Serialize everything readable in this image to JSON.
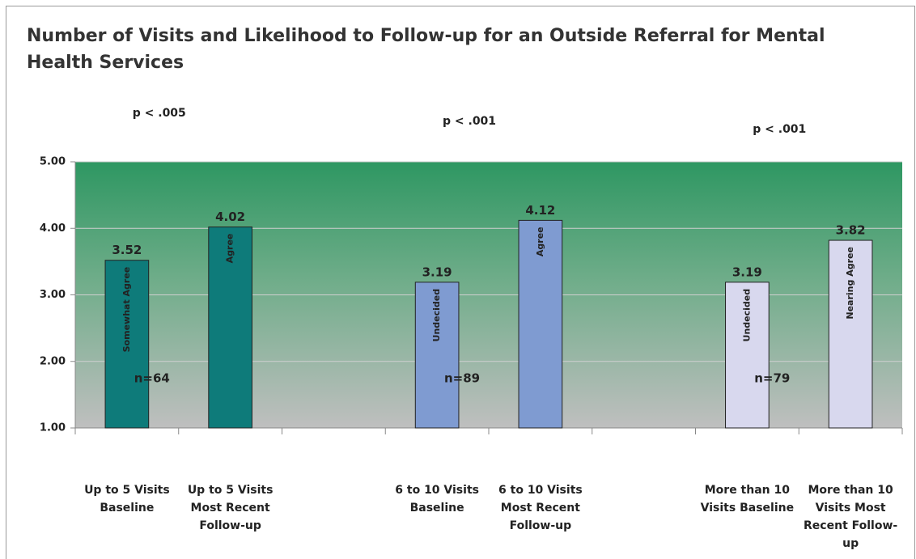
{
  "chart_data": {
    "type": "bar",
    "title": "Number of Visits and Likelihood to Follow-up for an Outside Referral for Mental Health Services",
    "categories": [
      "Up to 5 Visits Baseline",
      "Up to 5 Visits Most Recent Follow-up",
      null,
      "6 to 10 Visits Baseline",
      "6 to 10 Visits Most Recent Follow-up",
      null,
      "More than 10 Visits Baseline",
      "More than 10 Visits Most Recent Follow-up"
    ],
    "values": [
      3.52,
      4.02,
      null,
      3.19,
      4.12,
      null,
      3.19,
      3.82
    ],
    "colors": [
      "#0e7b7a",
      "#0e7b7a",
      null,
      "#7f9bd1",
      "#7f9bd1",
      null,
      "#d8d8ee",
      "#d8d8ee"
    ],
    "bar_labels": [
      "Somewhat Agree",
      "Agree",
      null,
      "Undecided",
      "Agree",
      null,
      "Undecided",
      "Nearing Agree"
    ],
    "group_labels": [
      "n=64",
      "n=89",
      "n=79"
    ],
    "p_values": [
      "p < .005",
      "p < .001",
      "p < .001"
    ],
    "ylim": [
      1,
      5
    ],
    "yticks": [
      {
        "value": 1,
        "label": "1.00"
      },
      {
        "value": 2,
        "label": "2.00"
      },
      {
        "value": 3,
        "label": "3.00"
      },
      {
        "value": 4,
        "label": "4.00"
      },
      {
        "value": 5,
        "label": "5.00"
      }
    ],
    "grid": true
  }
}
